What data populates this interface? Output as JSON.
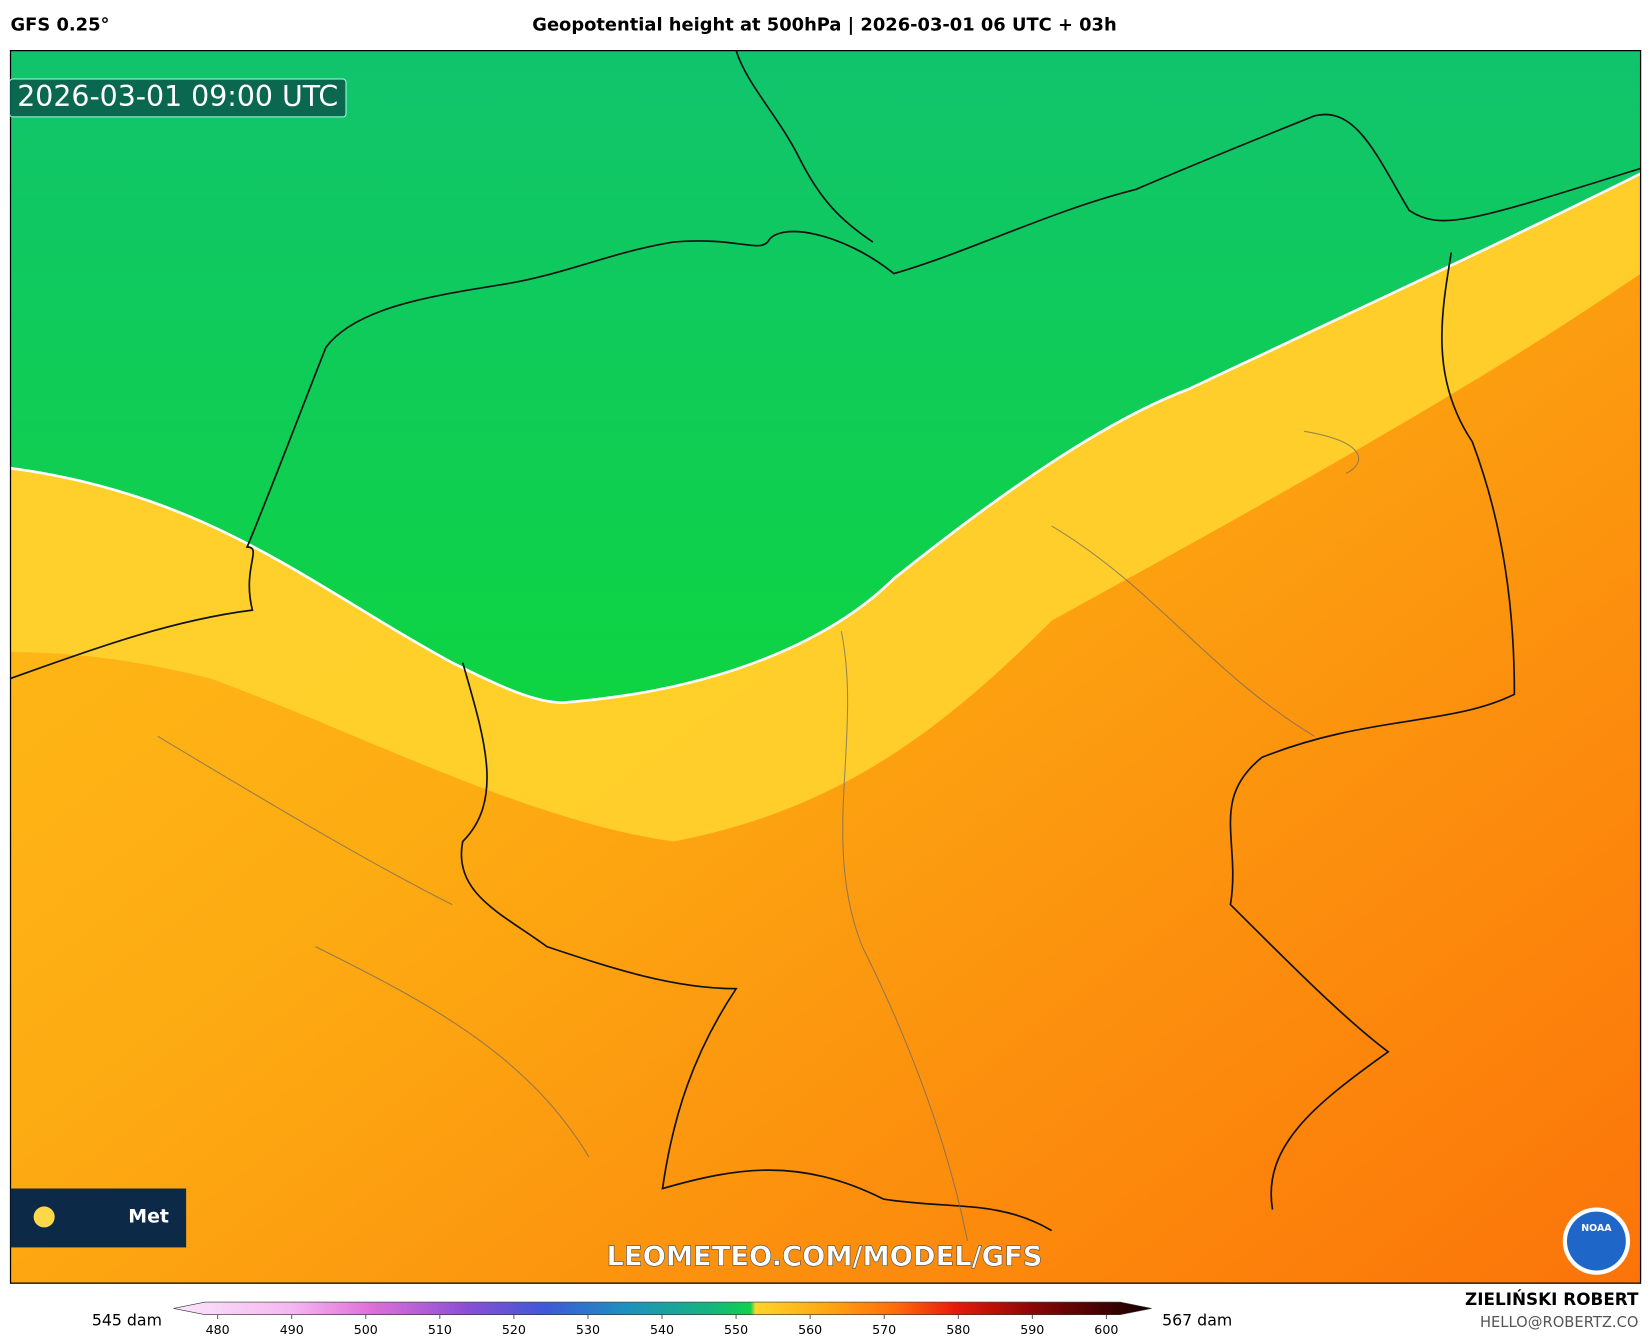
{
  "header": {
    "model": "GFS 0.25°",
    "title": "Geopotential height at 500hPa | 2026-03-01 06 UTC + 03h"
  },
  "map": {
    "valid_time": "2026-03-01 09:00 UTC",
    "watermark": "LEOMETEO.COM/MODEL/GFS",
    "logo_text": "Met",
    "agency_badge": "NOAA"
  },
  "legend": {
    "min_label": "545 dam",
    "max_label": "567 dam",
    "ticks": [
      480,
      490,
      500,
      510,
      520,
      530,
      540,
      550,
      560,
      570,
      580,
      590,
      600
    ]
  },
  "credits": {
    "author": "ZIELIŃSKI ROBERT",
    "email": "HELLO@ROBERTZ.CO"
  }
}
